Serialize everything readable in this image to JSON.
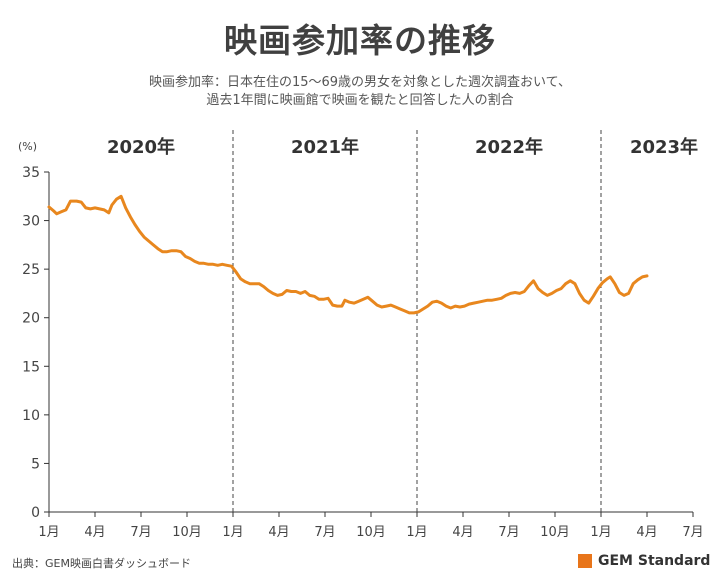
{
  "title": "映画参加率の推移",
  "subtitle_line1": "映画参加率：日本在住の15～69歳の男女を対象とした週次調査おいて、",
  "subtitle_line2": "過去1年間に映画館で映画を観たと回答した人の割合",
  "source": "出典：GEM映画白書ダッシュボード",
  "brand": {
    "name": "GEM Standard",
    "accent": "#e8751a"
  },
  "chart_data": {
    "type": "line",
    "ylabel": "(%)",
    "ylim": [
      0,
      35
    ],
    "yticks": [
      0,
      5,
      10,
      15,
      20,
      25,
      30,
      35
    ],
    "xlim": [
      0,
      42
    ],
    "xticks": [
      {
        "x": 0,
        "label": "1月"
      },
      {
        "x": 3,
        "label": "4月"
      },
      {
        "x": 6,
        "label": "7月"
      },
      {
        "x": 9,
        "label": "10月"
      },
      {
        "x": 12,
        "label": "1月"
      },
      {
        "x": 15,
        "label": "4月"
      },
      {
        "x": 18,
        "label": "7月"
      },
      {
        "x": 21,
        "label": "10月"
      },
      {
        "x": 24,
        "label": "1月"
      },
      {
        "x": 27,
        "label": "4月"
      },
      {
        "x": 30,
        "label": "7月"
      },
      {
        "x": 33,
        "label": "10月"
      },
      {
        "x": 36,
        "label": "1月"
      },
      {
        "x": 39,
        "label": "4月"
      },
      {
        "x": 42,
        "label": "7月"
      }
    ],
    "year_dividers": [
      12,
      24,
      36
    ],
    "years": [
      {
        "x": 0,
        "label": "2020年"
      },
      {
        "x": 12,
        "label": "2021年"
      },
      {
        "x": 24,
        "label": "2022年"
      },
      {
        "x": 36,
        "label": "2023年"
      }
    ],
    "grid": false,
    "line_color": "#e8871e",
    "series": [
      {
        "points": [
          [
            0.0,
            31.4
          ],
          [
            0.3,
            31.0
          ],
          [
            0.5,
            30.7
          ],
          [
            0.8,
            30.9
          ],
          [
            1.1,
            31.1
          ],
          [
            1.4,
            32.0
          ],
          [
            1.8,
            32.0
          ],
          [
            2.1,
            31.9
          ],
          [
            2.4,
            31.3
          ],
          [
            2.7,
            31.2
          ],
          [
            3.0,
            31.3
          ],
          [
            3.3,
            31.2
          ],
          [
            3.6,
            31.1
          ],
          [
            3.9,
            30.8
          ],
          [
            4.1,
            31.6
          ],
          [
            4.4,
            32.2
          ],
          [
            4.7,
            32.5
          ],
          [
            5.0,
            31.3
          ],
          [
            5.3,
            30.4
          ],
          [
            5.6,
            29.6
          ],
          [
            5.9,
            28.9
          ],
          [
            6.2,
            28.3
          ],
          [
            6.5,
            27.9
          ],
          [
            6.8,
            27.5
          ],
          [
            7.1,
            27.1
          ],
          [
            7.4,
            26.8
          ],
          [
            7.7,
            26.8
          ],
          [
            8.0,
            26.9
          ],
          [
            8.3,
            26.9
          ],
          [
            8.6,
            26.8
          ],
          [
            8.9,
            26.3
          ],
          [
            9.2,
            26.1
          ],
          [
            9.5,
            25.8
          ],
          [
            9.8,
            25.6
          ],
          [
            10.1,
            25.6
          ],
          [
            10.4,
            25.5
          ],
          [
            10.7,
            25.5
          ],
          [
            11.0,
            25.4
          ],
          [
            11.3,
            25.5
          ],
          [
            11.6,
            25.4
          ],
          [
            11.9,
            25.3
          ],
          [
            12.2,
            24.7
          ],
          [
            12.5,
            24.0
          ],
          [
            12.8,
            23.7
          ],
          [
            13.1,
            23.5
          ],
          [
            13.4,
            23.5
          ],
          [
            13.7,
            23.5
          ],
          [
            14.0,
            23.2
          ],
          [
            14.3,
            22.8
          ],
          [
            14.6,
            22.5
          ],
          [
            14.9,
            22.3
          ],
          [
            15.2,
            22.4
          ],
          [
            15.5,
            22.8
          ],
          [
            15.8,
            22.7
          ],
          [
            16.1,
            22.7
          ],
          [
            16.4,
            22.5
          ],
          [
            16.7,
            22.7
          ],
          [
            17.0,
            22.3
          ],
          [
            17.3,
            22.2
          ],
          [
            17.6,
            21.9
          ],
          [
            17.9,
            21.9
          ],
          [
            18.2,
            22.0
          ],
          [
            18.5,
            21.3
          ],
          [
            18.8,
            21.2
          ],
          [
            19.1,
            21.2
          ],
          [
            19.3,
            21.8
          ],
          [
            19.6,
            21.6
          ],
          [
            19.9,
            21.5
          ],
          [
            20.2,
            21.7
          ],
          [
            20.5,
            21.9
          ],
          [
            20.8,
            22.1
          ],
          [
            21.1,
            21.7
          ],
          [
            21.4,
            21.3
          ],
          [
            21.7,
            21.1
          ],
          [
            22.0,
            21.2
          ],
          [
            22.3,
            21.3
          ],
          [
            22.6,
            21.1
          ],
          [
            22.9,
            20.9
          ],
          [
            23.2,
            20.7
          ],
          [
            23.5,
            20.5
          ],
          [
            23.8,
            20.5
          ],
          [
            24.1,
            20.6
          ],
          [
            24.4,
            20.9
          ],
          [
            24.7,
            21.2
          ],
          [
            25.0,
            21.6
          ],
          [
            25.3,
            21.7
          ],
          [
            25.6,
            21.5
          ],
          [
            25.9,
            21.2
          ],
          [
            26.2,
            21.0
          ],
          [
            26.5,
            21.2
          ],
          [
            26.8,
            21.1
          ],
          [
            27.1,
            21.2
          ],
          [
            27.4,
            21.4
          ],
          [
            27.7,
            21.5
          ],
          [
            28.0,
            21.6
          ],
          [
            28.3,
            21.7
          ],
          [
            28.6,
            21.8
          ],
          [
            28.9,
            21.8
          ],
          [
            29.2,
            21.9
          ],
          [
            29.5,
            22.0
          ],
          [
            29.8,
            22.3
          ],
          [
            30.1,
            22.5
          ],
          [
            30.4,
            22.6
          ],
          [
            30.7,
            22.5
          ],
          [
            31.0,
            22.7
          ],
          [
            31.3,
            23.3
          ],
          [
            31.6,
            23.8
          ],
          [
            31.9,
            23.0
          ],
          [
            32.2,
            22.6
          ],
          [
            32.5,
            22.3
          ],
          [
            32.8,
            22.5
          ],
          [
            33.1,
            22.8
          ],
          [
            33.4,
            23.0
          ],
          [
            33.7,
            23.5
          ],
          [
            34.0,
            23.8
          ],
          [
            34.3,
            23.5
          ],
          [
            34.6,
            22.5
          ],
          [
            34.9,
            21.8
          ],
          [
            35.2,
            21.5
          ],
          [
            35.5,
            22.2
          ],
          [
            35.8,
            23.0
          ],
          [
            36.1,
            23.6
          ],
          [
            36.4,
            24.0
          ],
          [
            36.6,
            24.2
          ],
          [
            36.9,
            23.5
          ],
          [
            37.2,
            22.6
          ],
          [
            37.5,
            22.3
          ],
          [
            37.8,
            22.5
          ],
          [
            38.1,
            23.5
          ],
          [
            38.4,
            23.9
          ],
          [
            38.7,
            24.2
          ],
          [
            39.0,
            24.3
          ]
        ]
      }
    ]
  }
}
